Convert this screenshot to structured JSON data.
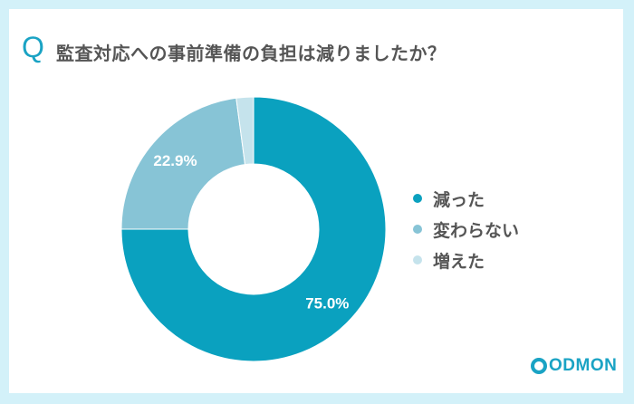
{
  "title": {
    "q_mark": "Q",
    "text": "監査対応への事前準備の負担は減りましたか？"
  },
  "chart_data": {
    "type": "pie",
    "donut": true,
    "start": "top",
    "direction": "clockwise",
    "categories": [
      "減った",
      "変わらない",
      "増えた"
    ],
    "values": [
      75.0,
      22.9,
      2.1
    ],
    "data_labels": [
      "75.0%",
      "22.9%",
      ""
    ],
    "colors": [
      "#0aa1bf",
      "#87c4d6",
      "#c5e3ec"
    ],
    "legend_position": "right"
  },
  "logo": {
    "text": "CODMON",
    "wordmark": "ODMON"
  }
}
